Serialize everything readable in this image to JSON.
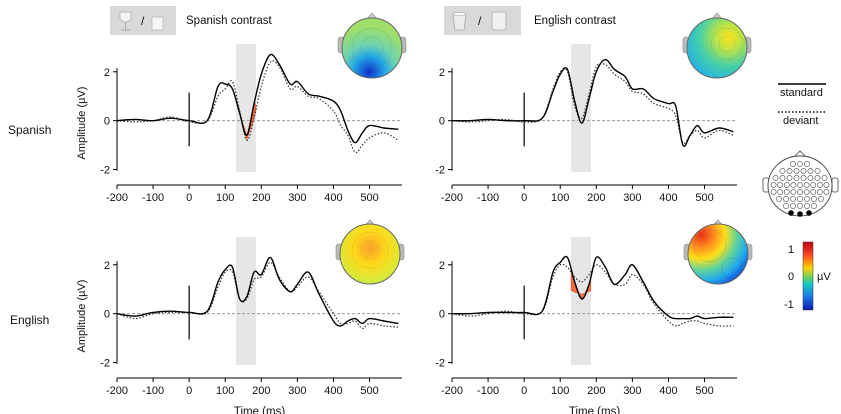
{
  "colors": {
    "standard_line": "#000000",
    "deviant_line": "#333333",
    "mmn_fill": "#f26a3c",
    "window_shade": "#e6e6e6",
    "baseline": "#999999",
    "legend_box_bg": "#d9d9d9"
  },
  "legend": {
    "standard_label": "standard",
    "deviant_label": "deviant"
  },
  "colorbar": {
    "max_label": "1",
    "mid_label": "0",
    "min_label": "-1",
    "unit": "µV"
  },
  "icons": {
    "spanish_contrast": [
      "wine-glass-icon",
      "cup-icon"
    ],
    "english_contrast": [
      "mug-icon",
      "cup-icon"
    ]
  },
  "row_labels": [
    "Spanish",
    "English"
  ],
  "chart_data": [
    {
      "type": "line",
      "title": "Spanish contrast",
      "group": "Spanish",
      "xlabel": "",
      "ylabel": "Amplitude (µV)",
      "xlim": [
        -200,
        590
      ],
      "ylim": [
        -2.1,
        2.4
      ],
      "xticks": [
        -200,
        -100,
        0,
        100,
        200,
        300,
        400,
        500
      ],
      "yticks": [
        -2,
        0,
        2
      ],
      "highlight_window": [
        130,
        185
      ],
      "mmn_fill": true,
      "x": [
        -200,
        -150,
        -100,
        -50,
        0,
        50,
        80,
        100,
        120,
        140,
        160,
        180,
        200,
        225,
        250,
        280,
        300,
        330,
        360,
        400,
        420,
        440,
        460,
        480,
        500,
        540,
        580
      ],
      "series": [
        {
          "name": "standard",
          "values": [
            0,
            0.05,
            0,
            0.1,
            0,
            0,
            1.4,
            1.5,
            1.3,
            0.3,
            -0.6,
            0.7,
            1.9,
            2.7,
            2.3,
            1.5,
            1.6,
            1.1,
            1.0,
            0.8,
            0.4,
            -0.4,
            -0.9,
            -0.5,
            -0.2,
            -0.3,
            -0.35
          ]
        },
        {
          "name": "deviant",
          "values": [
            0,
            -0.05,
            0,
            0.15,
            -0.05,
            0,
            1.0,
            1.3,
            1.6,
            0.4,
            -0.8,
            0.1,
            1.4,
            2.4,
            2.2,
            1.3,
            1.4,
            1.0,
            0.9,
            0.4,
            -0.2,
            -0.6,
            -1.3,
            -1.0,
            -0.7,
            -0.5,
            -0.8
          ]
        }
      ]
    },
    {
      "type": "line",
      "title": "English contrast",
      "group": "Spanish",
      "xlabel": "",
      "ylabel": "",
      "xlim": [
        -200,
        590
      ],
      "ylim": [
        -2.1,
        2.4
      ],
      "xticks": [
        -200,
        -100,
        0,
        100,
        200,
        300,
        400,
        500
      ],
      "yticks": [
        -2,
        0,
        2
      ],
      "highlight_window": [
        130,
        185
      ],
      "mmn_fill": false,
      "x": [
        -200,
        -150,
        -100,
        -50,
        0,
        50,
        80,
        100,
        120,
        140,
        160,
        180,
        200,
        225,
        250,
        280,
        300,
        330,
        360,
        400,
        420,
        440,
        460,
        480,
        500,
        540,
        580
      ],
      "series": [
        {
          "name": "standard",
          "values": [
            0,
            0,
            0.05,
            0,
            0,
            0.1,
            1.2,
            1.9,
            2.1,
            0.8,
            -0.1,
            0.9,
            2.0,
            2.5,
            2.1,
            1.8,
            1.3,
            1.3,
            0.9,
            0.7,
            0.6,
            -1.0,
            -0.6,
            -0.2,
            -0.5,
            -0.3,
            -0.45
          ]
        },
        {
          "name": "deviant",
          "values": [
            0,
            -0.05,
            0,
            0.05,
            -0.05,
            0.1,
            1.3,
            2.0,
            2.0,
            0.6,
            0.1,
            1.1,
            2.2,
            2.3,
            1.9,
            1.6,
            1.2,
            1.1,
            0.7,
            0.5,
            0.2,
            -0.9,
            -0.6,
            -0.4,
            -0.7,
            -0.4,
            -0.6
          ]
        }
      ]
    },
    {
      "type": "line",
      "title": "",
      "group": "English",
      "xlabel": "Time (ms)",
      "ylabel": "Amplitude (µV)",
      "xlim": [
        -200,
        590
      ],
      "ylim": [
        -2.1,
        2.4
      ],
      "xticks": [
        -200,
        -100,
        0,
        100,
        200,
        300,
        400,
        500
      ],
      "yticks": [
        -2,
        0,
        2
      ],
      "highlight_window": [
        130,
        185
      ],
      "mmn_fill": false,
      "x": [
        -200,
        -150,
        -100,
        -50,
        0,
        50,
        80,
        100,
        120,
        140,
        160,
        180,
        200,
        225,
        250,
        280,
        300,
        330,
        360,
        400,
        420,
        440,
        460,
        480,
        500,
        540,
        580
      ],
      "series": [
        {
          "name": "standard",
          "values": [
            0,
            -0.1,
            0.05,
            0.1,
            0.05,
            0.1,
            1.3,
            1.8,
            1.9,
            0.6,
            0.7,
            1.7,
            1.6,
            2.3,
            1.4,
            0.9,
            1.2,
            1.7,
            0.8,
            -0.3,
            -0.5,
            -0.3,
            -0.2,
            -0.4,
            -0.2,
            -0.3,
            -0.4
          ]
        },
        {
          "name": "deviant",
          "values": [
            0,
            -0.2,
            0,
            0.05,
            0.05,
            0.05,
            1.1,
            1.7,
            1.7,
            0.6,
            0.6,
            1.4,
            1.5,
            2.1,
            1.5,
            0.9,
            1.1,
            1.5,
            0.9,
            0.0,
            -0.4,
            -0.4,
            -0.3,
            -0.6,
            -0.4,
            -0.5,
            -0.55
          ]
        }
      ]
    },
    {
      "type": "line",
      "title": "",
      "group": "English",
      "xlabel": "Time (ms)",
      "ylabel": "",
      "xlim": [
        -200,
        590
      ],
      "ylim": [
        -2.1,
        2.4
      ],
      "xticks": [
        -200,
        -100,
        0,
        100,
        200,
        300,
        400,
        500
      ],
      "yticks": [
        -2,
        0,
        2
      ],
      "highlight_window": [
        130,
        185
      ],
      "mmn_fill": true,
      "x": [
        -200,
        -150,
        -100,
        -50,
        0,
        50,
        80,
        100,
        120,
        140,
        160,
        180,
        200,
        225,
        250,
        280,
        300,
        330,
        360,
        400,
        420,
        440,
        460,
        480,
        500,
        540,
        580
      ],
      "series": [
        {
          "name": "standard",
          "values": [
            0,
            0,
            0.05,
            0.05,
            0.05,
            0.1,
            1.7,
            2.1,
            2.3,
            1.3,
            0.6,
            1.2,
            2.3,
            1.9,
            1.2,
            1.6,
            2.0,
            1.3,
            0.5,
            -0.1,
            -0.2,
            -0.2,
            -0.2,
            -0.1,
            -0.2,
            -0.15,
            -0.15
          ]
        },
        {
          "name": "deviant",
          "values": [
            0,
            -0.1,
            0,
            0.1,
            0,
            0.1,
            1.5,
            2.0,
            1.9,
            1.5,
            1.3,
            1.6,
            2.0,
            1.7,
            1.2,
            1.2,
            1.6,
            1.2,
            0.4,
            -0.3,
            -0.5,
            -0.4,
            -0.3,
            -0.3,
            -0.4,
            -0.5,
            -0.5
          ]
        }
      ]
    }
  ]
}
